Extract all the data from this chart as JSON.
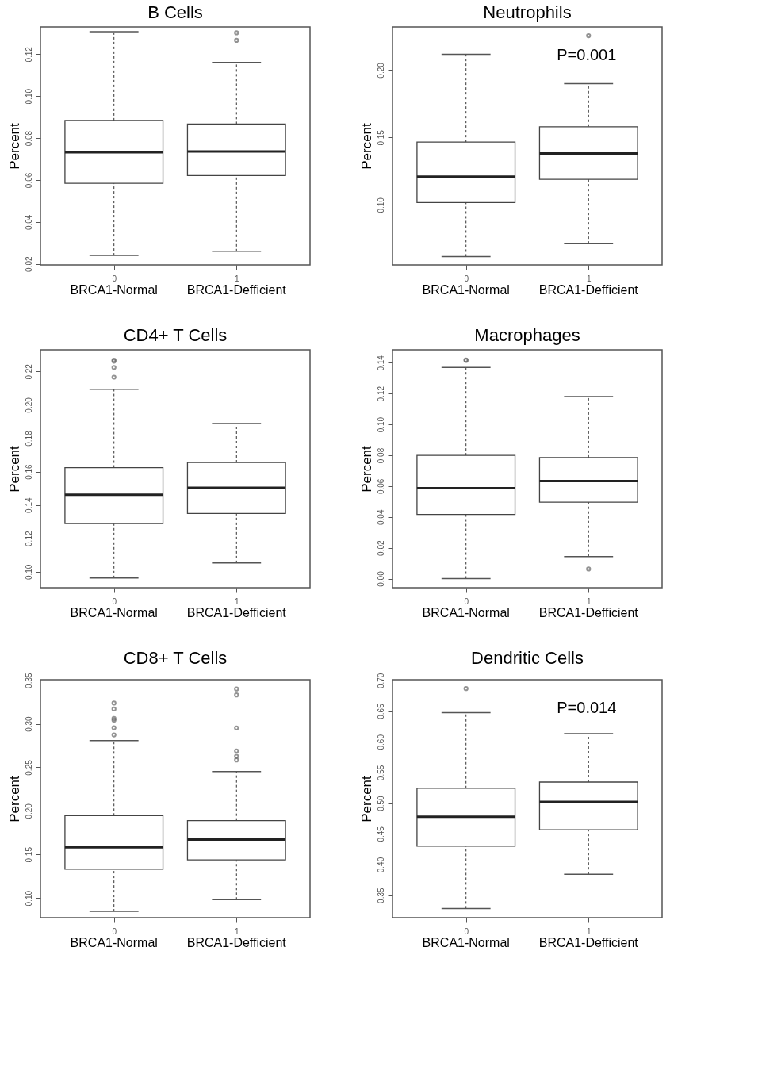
{
  "chart_data": [
    {
      "type": "box",
      "title": "B Cells",
      "categories": [
        "0",
        "1"
      ],
      "ylabel": "Percent",
      "ylim": [
        0.0195,
        0.133
      ],
      "yticks": [
        0.02,
        0.04,
        0.06,
        0.08,
        {
          "value": 0.1,
          "label": "0.10"
        },
        0.12
      ],
      "boxes": [
        {
          "low": 0.024,
          "q1": 0.0584,
          "median": 0.0732,
          "q3": 0.0884,
          "high": 0.1307
        },
        {
          "low": 0.026,
          "q1": 0.0621,
          "median": 0.0736,
          "q3": 0.0867,
          "high": 0.1161,
          "outliers": [
            0.1302,
            0.1266
          ]
        }
      ],
      "annotations": [
        "BRCA1-Normal",
        "BRCA1-Defficient"
      ]
    },
    {
      "type": "box",
      "title": "Neutrophils",
      "categories": [
        "0",
        "1"
      ],
      "ylabel": "Percent",
      "ylim": [
        0.0555,
        0.232
      ],
      "yticks": [
        {
          "value": 0.1,
          "label": "0.10"
        },
        0.15,
        {
          "value": 0.2,
          "label": "0.20"
        }
      ],
      "boxes": [
        {
          "low": 0.0617,
          "q1": 0.1017,
          "median": 0.1209,
          "q3": 0.1466,
          "high": 0.2117
        },
        {
          "low": 0.0713,
          "q1": 0.119,
          "median": 0.1381,
          "q3": 0.158,
          "high": 0.19,
          "outliers": [
            0.2255
          ]
        }
      ],
      "annotations": [
        "BRCA1-Normal",
        "BRCA1-Defficient",
        "P=0.001"
      ]
    },
    {
      "type": "box",
      "title": "CD4+ T Cells",
      "categories": [
        "0",
        "1"
      ],
      "ylabel": "Percent",
      "ylim": [
        0.0904,
        0.233
      ],
      "yticks": [
        {
          "value": 0.1,
          "label": "0.10"
        },
        0.12,
        0.14,
        0.16,
        0.18,
        {
          "value": 0.2,
          "label": "0.20"
        },
        0.22
      ],
      "boxes": [
        {
          "low": 0.0962,
          "q1": 0.1288,
          "median": 0.1461,
          "q3": 0.1624,
          "high": 0.2093,
          "outliers": [
            0.2268,
            0.2262,
            0.2224,
            0.2166
          ]
        },
        {
          "low": 0.1052,
          "q1": 0.1349,
          "median": 0.1503,
          "q3": 0.1655,
          "high": 0.1888
        }
      ],
      "annotations": [
        "BRCA1-Normal",
        "BRCA1-Defficient"
      ]
    },
    {
      "type": "box",
      "title": "Macrophages",
      "categories": [
        "0",
        "1"
      ],
      "ylabel": "Percent",
      "ylim": [
        -0.0059,
        0.1484
      ],
      "yticks": [
        {
          "value": 0,
          "label": "0.00"
        },
        0.02,
        0.04,
        0.06,
        0.08,
        {
          "value": 0.1,
          "label": "0.10"
        },
        0.12,
        0.14
      ],
      "boxes": [
        {
          "low": 0,
          "q1": 0.0416,
          "median": 0.0586,
          "q3": 0.0799,
          "high": 0.137,
          "outliers": [
            0.1418,
            0.1415
          ]
        },
        {
          "low": 0.0143,
          "q1": 0.0496,
          "median": 0.0633,
          "q3": 0.0785,
          "high": 0.118,
          "outliers": [
            0.0062
          ]
        }
      ],
      "annotations": [
        "BRCA1-Normal",
        "BRCA1-Defficient"
      ]
    },
    {
      "type": "box",
      "title": "CD8+ T Cells",
      "categories": [
        "0",
        "1"
      ],
      "ylabel": "Percent",
      "ylim": [
        0.0774,
        0.3506
      ],
      "yticks": [
        {
          "value": 0.1,
          "label": "0.10"
        },
        0.15,
        {
          "value": 0.2,
          "label": "0.20"
        },
        0.25,
        {
          "value": 0.3,
          "label": "0.30"
        },
        0.35
      ],
      "boxes": [
        {
          "low": 0.0846,
          "q1": 0.1331,
          "median": 0.1583,
          "q3": 0.1946,
          "high": 0.2807,
          "outliers": [
            0.3238,
            0.317,
            0.306,
            0.3042,
            0.2955,
            0.2873
          ]
        },
        {
          "low": 0.0981,
          "q1": 0.1437,
          "median": 0.167,
          "q3": 0.1888,
          "high": 0.2452,
          "outliers": [
            0.34,
            0.3331,
            0.2952,
            0.2688,
            0.2627,
            0.2585
          ]
        }
      ],
      "annotations": [
        "BRCA1-Normal",
        "BRCA1-Defficient"
      ]
    },
    {
      "type": "box",
      "title": "Dendritic Cells",
      "categories": [
        "0",
        "1"
      ],
      "ylabel": "Percent",
      "ylim": [
        0.3134,
        0.7011
      ],
      "yticks": [
        0.35,
        {
          "value": 0.4,
          "label": "0.40"
        },
        0.45,
        {
          "value": 0.5,
          "label": "0.50"
        },
        0.55,
        {
          "value": 0.6,
          "label": "0.60"
        },
        0.65,
        {
          "value": 0.7,
          "label": "0.70"
        }
      ],
      "boxes": [
        {
          "low": 0.3284,
          "q1": 0.4299,
          "median": 0.4779,
          "q3": 0.5244,
          "high": 0.6475,
          "outliers": [
            0.6866
          ]
        },
        {
          "low": 0.3842,
          "q1": 0.4566,
          "median": 0.502,
          "q3": 0.5344,
          "high": 0.6133
        }
      ],
      "annotations": [
        "BRCA1-Normal",
        "BRCA1-Defficient",
        "P=0.014"
      ]
    }
  ]
}
